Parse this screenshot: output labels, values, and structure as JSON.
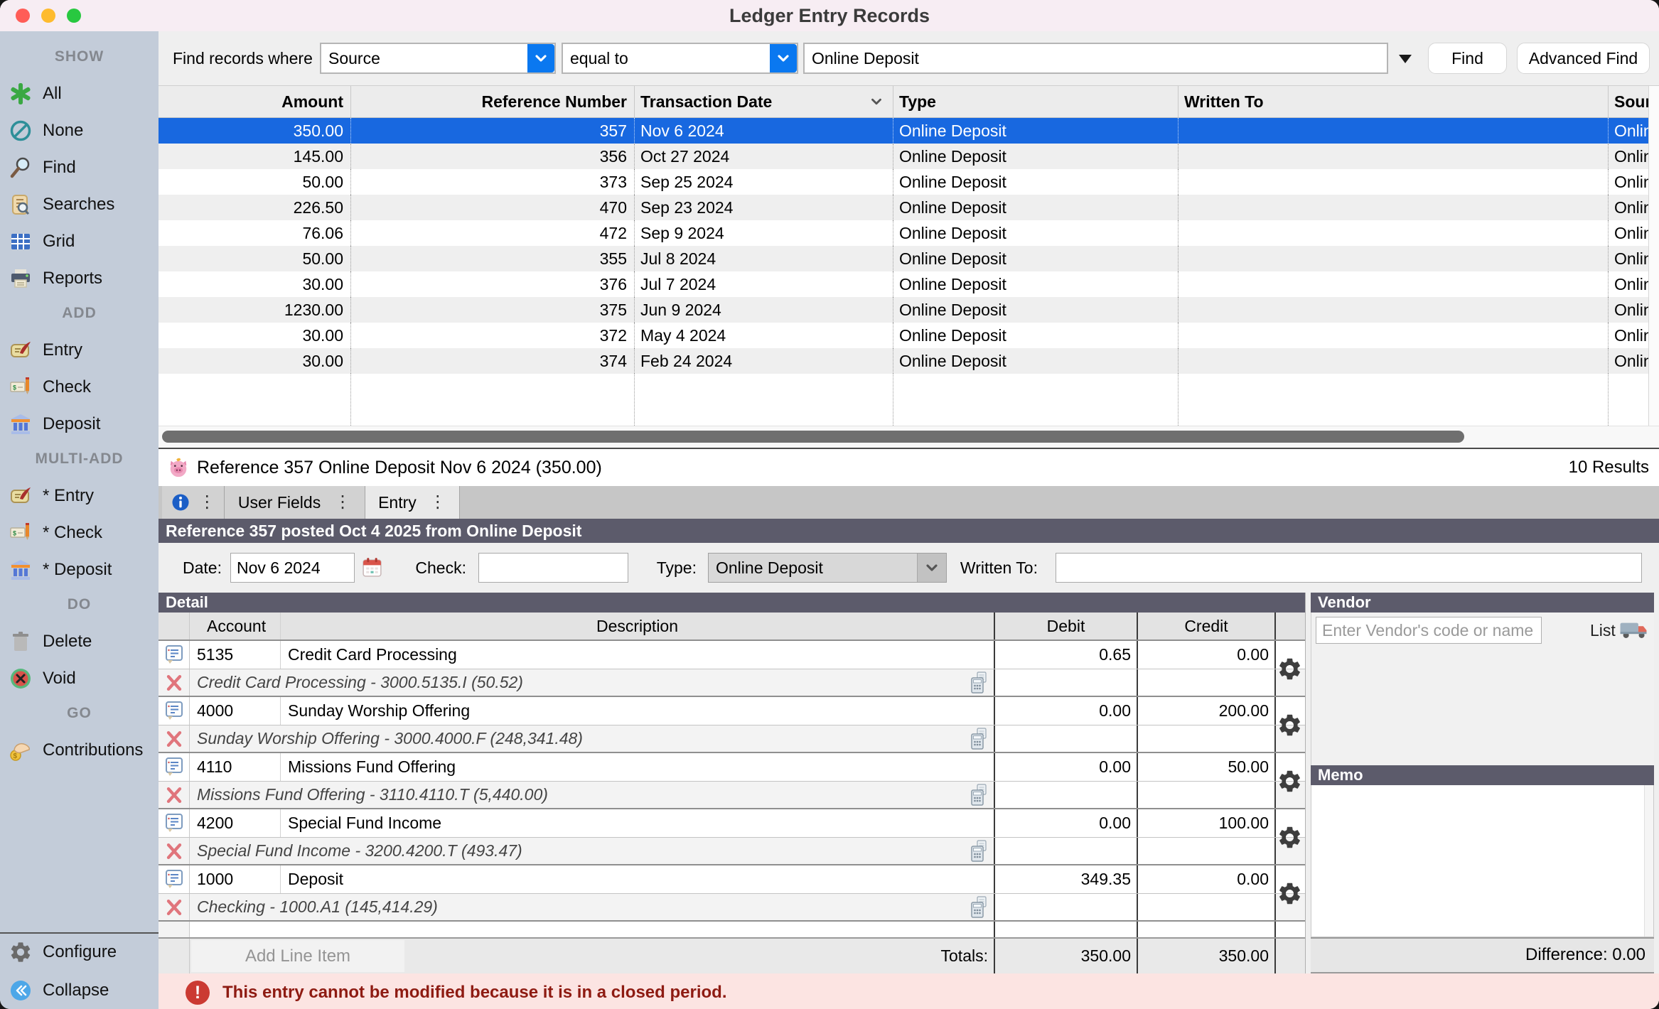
{
  "window": {
    "title": "Ledger Entry Records"
  },
  "colors": {
    "accent_blue": "#0a78f0",
    "selection_blue": "#1868e0",
    "header_slate": "#5c5b6b",
    "sidebar_bg": "#c3ccd9",
    "error_bg": "#fce4e2",
    "error_text": "#8e1b12"
  },
  "sidebar": {
    "sections": [
      {
        "header": "SHOW",
        "items": [
          {
            "icon": "asterisk-icon",
            "label": "All"
          },
          {
            "icon": "none-icon",
            "label": "None"
          },
          {
            "icon": "magnifier-icon",
            "label": "Find"
          },
          {
            "icon": "searches-icon",
            "label": "Searches"
          },
          {
            "icon": "grid-icon",
            "label": "Grid"
          },
          {
            "icon": "printer-icon",
            "label": "Reports"
          }
        ]
      },
      {
        "header": "ADD",
        "items": [
          {
            "icon": "scroll-quill-icon",
            "label": "Entry"
          },
          {
            "icon": "check-pencil-icon",
            "label": "Check"
          },
          {
            "icon": "bank-icon",
            "label": "Deposit"
          }
        ]
      },
      {
        "header": "MULTI-ADD",
        "items": [
          {
            "icon": "scroll-quill-icon",
            "label": "* Entry"
          },
          {
            "icon": "check-pencil-icon",
            "label": "* Check"
          },
          {
            "icon": "bank-icon",
            "label": "* Deposit"
          }
        ]
      },
      {
        "header": "DO",
        "items": [
          {
            "icon": "trash-icon",
            "label": "Delete"
          },
          {
            "icon": "void-icon",
            "label": "Void"
          }
        ]
      },
      {
        "header": "GO",
        "items": [
          {
            "icon": "hand-coin-icon",
            "label": "Contributions"
          }
        ]
      }
    ],
    "footer": [
      {
        "icon": "gear-icon",
        "label": "Configure"
      },
      {
        "icon": "collapse-icon",
        "label": "Collapse"
      }
    ]
  },
  "find_bar": {
    "label": "Find records where",
    "field": "Source",
    "operator": "equal to",
    "value": "Online Deposit",
    "find": "Find",
    "advanced_find": "Advanced Find"
  },
  "results_table": {
    "columns": [
      "Amount",
      "Reference Number",
      "Transaction Date",
      "Type",
      "Written To",
      "Source"
    ],
    "sorted_column": "Transaction Date",
    "rows": [
      {
        "amount": "350.00",
        "reference_number": "357",
        "transaction_date": "Nov 6 2024",
        "type": "Online Deposit",
        "written_to": "",
        "source": "Online Deposit",
        "selected": true
      },
      {
        "amount": "145.00",
        "reference_number": "356",
        "transaction_date": "Oct 27 2024",
        "type": "Online Deposit",
        "written_to": "",
        "source": "Online Deposit"
      },
      {
        "amount": "50.00",
        "reference_number": "373",
        "transaction_date": "Sep 25 2024",
        "type": "Online Deposit",
        "written_to": "",
        "source": "Online Deposit"
      },
      {
        "amount": "226.50",
        "reference_number": "470",
        "transaction_date": "Sep 23 2024",
        "type": "Online Deposit",
        "written_to": "",
        "source": "Online Deposit"
      },
      {
        "amount": "76.06",
        "reference_number": "472",
        "transaction_date": "Sep 9 2024",
        "type": "Online Deposit",
        "written_to": "",
        "source": "Online Deposit"
      },
      {
        "amount": "50.00",
        "reference_number": "355",
        "transaction_date": "Jul 8 2024",
        "type": "Online Deposit",
        "written_to": "",
        "source": "Online Deposit"
      },
      {
        "amount": "30.00",
        "reference_number": "376",
        "transaction_date": "Jul 7 2024",
        "type": "Online Deposit",
        "written_to": "",
        "source": "Online Deposit"
      },
      {
        "amount": "1230.00",
        "reference_number": "375",
        "transaction_date": "Jun 9 2024",
        "type": "Online Deposit",
        "written_to": "",
        "source": "Online Deposit"
      },
      {
        "amount": "30.00",
        "reference_number": "372",
        "transaction_date": "May 4 2024",
        "type": "Online Deposit",
        "written_to": "",
        "source": "Online Deposit"
      },
      {
        "amount": "30.00",
        "reference_number": "374",
        "transaction_date": "Feb 24 2024",
        "type": "Online Deposit",
        "written_to": "",
        "source": "Online Deposit"
      }
    ],
    "results_count": "10 Results"
  },
  "record": {
    "title": "Reference 357 Online Deposit Nov 6 2024 (350.00)",
    "posted": "Reference 357 posted Oct 4 2025 from Online Deposit"
  },
  "tabs": {
    "items": [
      {
        "label": "User Fields"
      },
      {
        "label": "Entry",
        "selected": true
      }
    ]
  },
  "entry_form": {
    "date_label": "Date:",
    "date_value": "Nov 6 2024",
    "check_label": "Check:",
    "check_value": "",
    "type_label": "Type:",
    "type_value": "Online Deposit",
    "written_to_label": "Written To:",
    "written_to_value": ""
  },
  "detail": {
    "title": "Detail",
    "columns": [
      "Account",
      "Description",
      "Debit",
      "Credit"
    ],
    "line_items": [
      {
        "account": "5135",
        "description": "Credit Card Processing",
        "debit": "0.65",
        "credit": "0.00",
        "account_detail": "Credit Card Processing - 3000.5135.I (50.52)"
      },
      {
        "account": "4000",
        "description": "Sunday Worship Offering",
        "debit": "0.00",
        "credit": "200.00",
        "account_detail": "Sunday Worship Offering - 3000.4000.F (248,341.48)"
      },
      {
        "account": "4110",
        "description": "Missions Fund Offering",
        "debit": "0.00",
        "credit": "50.00",
        "account_detail": "Missions Fund Offering - 3110.4110.T (5,440.00)"
      },
      {
        "account": "4200",
        "description": "Special Fund Income",
        "debit": "0.00",
        "credit": "100.00",
        "account_detail": "Special Fund Income - 3200.4200.T (493.47)"
      },
      {
        "account": "1000",
        "description": "Deposit",
        "debit": "349.35",
        "credit": "0.00",
        "account_detail": "Checking - 1000.A1 (145,414.29)"
      }
    ],
    "add_line_item_label": "Add Line Item",
    "totals_label": "Totals:",
    "total_debit": "350.00",
    "total_credit": "350.00",
    "difference": "Difference: 0.00"
  },
  "vendor": {
    "title": "Vendor",
    "placeholder": "Enter Vendor's code or name",
    "list_label": "List"
  },
  "memo": {
    "title": "Memo"
  },
  "error_bar": {
    "text": "This entry cannot be modified because it is in a closed period."
  }
}
